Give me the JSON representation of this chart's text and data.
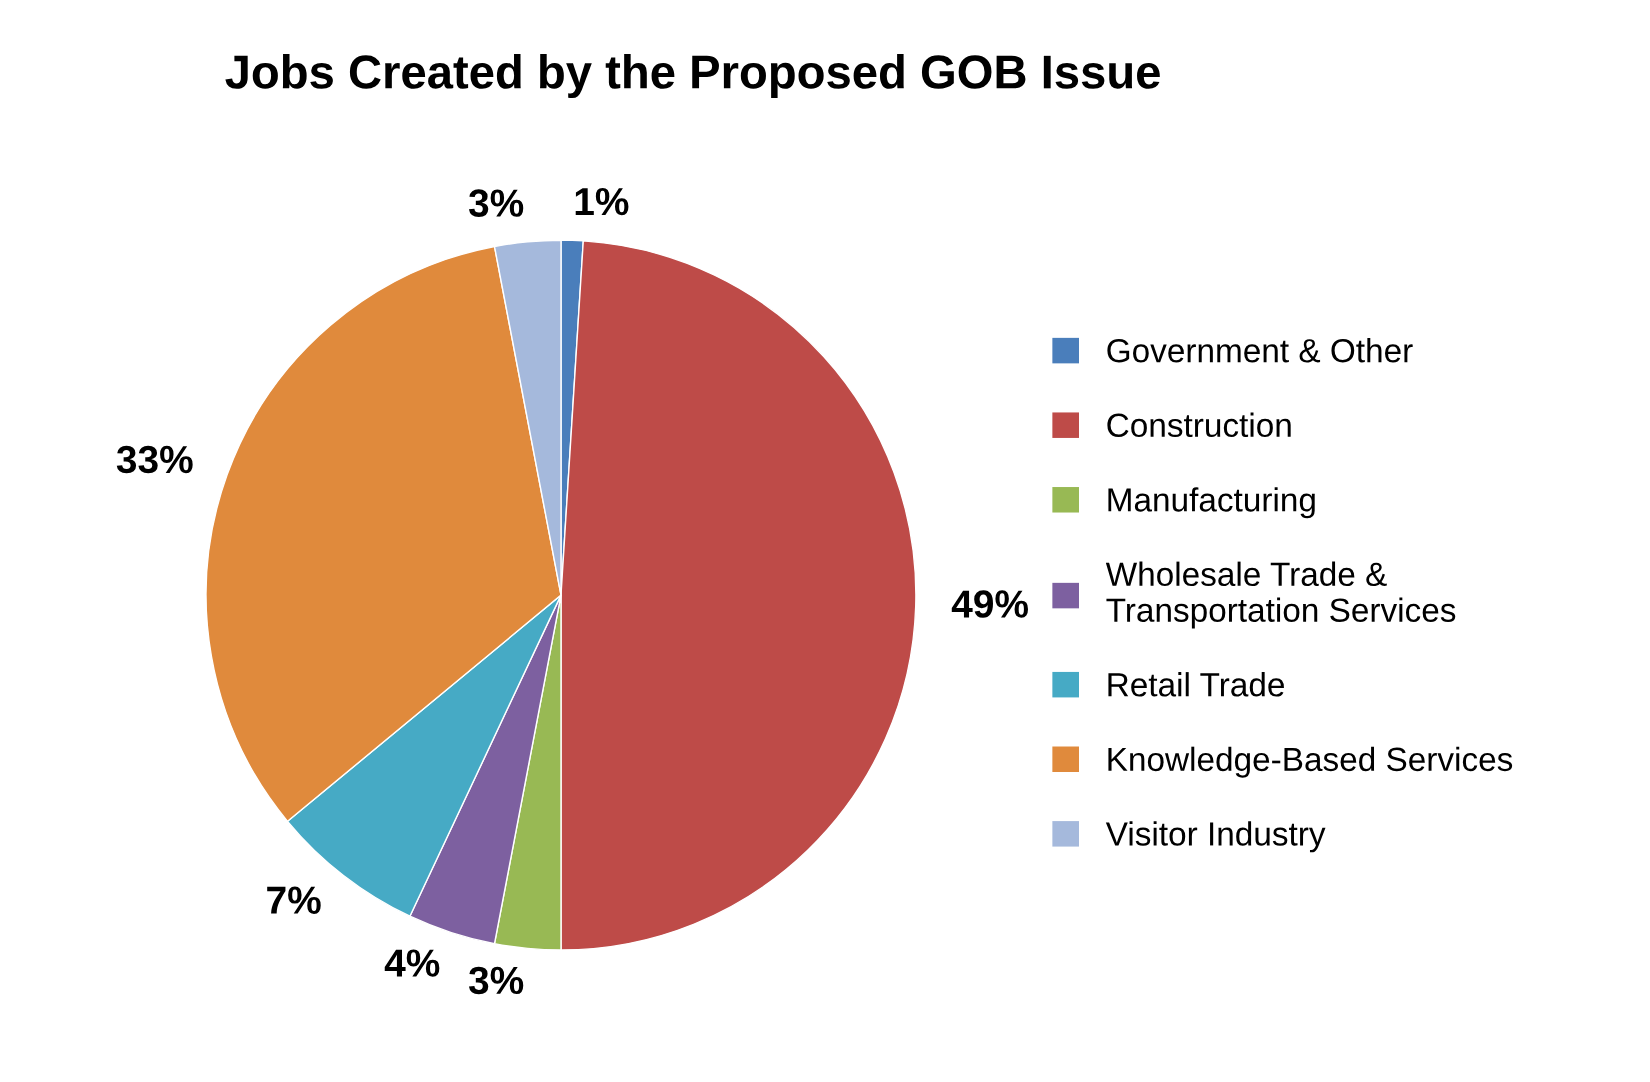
{
  "chart_data": {
    "type": "pie",
    "title": "Jobs Created by the Proposed GOB Issue",
    "categories": [
      "Government & Other",
      "Construction",
      "Manufacturing",
      "Wholesale Trade & Transportation Services",
      "Retail Trade",
      "Knowledge-Based Services",
      "Visitor Industry"
    ],
    "values": [
      1,
      49,
      3,
      4,
      7,
      33,
      3
    ],
    "value_labels": [
      "1%",
      "49%",
      "3%",
      "4%",
      "7%",
      "33%",
      "3%"
    ],
    "colors": [
      "#4a7ebb",
      "#be4b48",
      "#98b954",
      "#7d60a0",
      "#46aac5",
      "#e08a3c",
      "#a5b9dc"
    ],
    "legend": "right"
  }
}
